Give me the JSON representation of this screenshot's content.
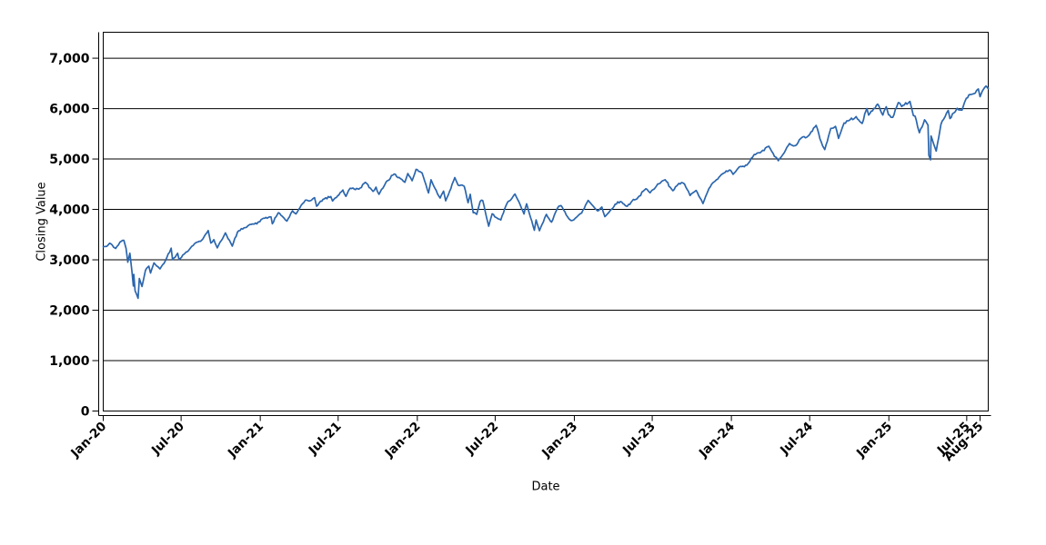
{
  "chart_data": {
    "type": "line",
    "title": "",
    "xlabel": "Date",
    "ylabel": "Closing Value",
    "legend": "none",
    "grid": "horizontal",
    "background_color": "#ffffff",
    "axis_color": "#000000",
    "grid_color": "#000000",
    "line_color": "#2b66ad",
    "x_ticks": [
      {
        "date": "2020-01-02",
        "label": "Jan-20"
      },
      {
        "date": "2020-07-01",
        "label": "Jul-20"
      },
      {
        "date": "2021-01-01",
        "label": "Jan-21"
      },
      {
        "date": "2021-07-01",
        "label": "Jul-21"
      },
      {
        "date": "2022-01-01",
        "label": "Jan-22"
      },
      {
        "date": "2022-07-01",
        "label": "Jul-22"
      },
      {
        "date": "2023-01-01",
        "label": "Jan-23"
      },
      {
        "date": "2023-07-01",
        "label": "Jul-23"
      },
      {
        "date": "2024-01-01",
        "label": "Jan-24"
      },
      {
        "date": "2024-07-01",
        "label": "Jul-24"
      },
      {
        "date": "2025-01-01",
        "label": "Jan-25"
      },
      {
        "date": "2025-07-01",
        "label": "Jul-25"
      },
      {
        "date": "2025-08-01",
        "label": "Aug-25"
      }
    ],
    "y_ticks": [
      {
        "value": 0,
        "label": "0"
      },
      {
        "value": 1000,
        "label": "1,000"
      },
      {
        "value": 2000,
        "label": "2,000"
      },
      {
        "value": 3000,
        "label": "3,000"
      },
      {
        "value": 4000,
        "label": "4,000"
      },
      {
        "value": 5000,
        "label": "5,000"
      },
      {
        "value": 6000,
        "label": "6,000"
      },
      {
        "value": 7000,
        "label": "7,000"
      }
    ],
    "xlim": [
      "2020-01-02",
      "2025-08-20"
    ],
    "ylim": [
      0,
      7515
    ],
    "series": [
      {
        "name": "Closing Value",
        "points": [
          [
            "2020-01-02",
            3258
          ],
          [
            "2020-01-10",
            3265
          ],
          [
            "2020-01-17",
            3330
          ],
          [
            "2020-01-31",
            3226
          ],
          [
            "2020-02-10",
            3352
          ],
          [
            "2020-02-19",
            3386
          ],
          [
            "2020-02-24",
            3226
          ],
          [
            "2020-02-28",
            2954
          ],
          [
            "2020-03-04",
            3130
          ],
          [
            "2020-03-09",
            2747
          ],
          [
            "2020-03-12",
            2481
          ],
          [
            "2020-03-13",
            2711
          ],
          [
            "2020-03-16",
            2386
          ],
          [
            "2020-03-20",
            2305
          ],
          [
            "2020-03-23",
            2237
          ],
          [
            "2020-03-26",
            2630
          ],
          [
            "2020-04-01",
            2470
          ],
          [
            "2020-04-09",
            2790
          ],
          [
            "2020-04-17",
            2875
          ],
          [
            "2020-04-21",
            2737
          ],
          [
            "2020-04-29",
            2940
          ],
          [
            "2020-05-13",
            2820
          ],
          [
            "2020-05-26",
            2992
          ],
          [
            "2020-06-08",
            3232
          ],
          [
            "2020-06-11",
            3002
          ],
          [
            "2020-06-23",
            3131
          ],
          [
            "2020-06-26",
            3009
          ],
          [
            "2020-07-13",
            3155
          ],
          [
            "2020-07-23",
            3236
          ],
          [
            "2020-08-06",
            3349
          ],
          [
            "2020-08-18",
            3390
          ],
          [
            "2020-09-02",
            3581
          ],
          [
            "2020-09-08",
            3332
          ],
          [
            "2020-09-15",
            3401
          ],
          [
            "2020-09-23",
            3237
          ],
          [
            "2020-10-12",
            3534
          ],
          [
            "2020-10-28",
            3271
          ],
          [
            "2020-11-09",
            3550
          ],
          [
            "2020-11-24",
            3635
          ],
          [
            "2020-12-08",
            3702
          ],
          [
            "2020-12-18",
            3709
          ],
          [
            "2020-12-31",
            3756
          ],
          [
            "2021-01-08",
            3825
          ],
          [
            "2021-01-26",
            3850
          ],
          [
            "2021-01-29",
            3714
          ],
          [
            "2021-02-12",
            3935
          ],
          [
            "2021-02-25",
            3829
          ],
          [
            "2021-03-04",
            3768
          ],
          [
            "2021-03-17",
            3974
          ],
          [
            "2021-03-25",
            3910
          ],
          [
            "2021-04-16",
            4185
          ],
          [
            "2021-04-30",
            4181
          ],
          [
            "2021-05-07",
            4233
          ],
          [
            "2021-05-12",
            4063
          ],
          [
            "2021-05-27",
            4201
          ],
          [
            "2021-06-14",
            4255
          ],
          [
            "2021-06-18",
            4166
          ],
          [
            "2021-07-12",
            4385
          ],
          [
            "2021-07-19",
            4258
          ],
          [
            "2021-07-29",
            4420
          ],
          [
            "2021-08-18",
            4400
          ],
          [
            "2021-09-02",
            4537
          ],
          [
            "2021-09-20",
            4358
          ],
          [
            "2021-09-27",
            4443
          ],
          [
            "2021-10-04",
            4300
          ],
          [
            "2021-10-21",
            4550
          ],
          [
            "2021-11-08",
            4702
          ],
          [
            "2021-11-26",
            4595
          ],
          [
            "2021-12-03",
            4538
          ],
          [
            "2021-12-10",
            4712
          ],
          [
            "2021-12-20",
            4568
          ],
          [
            "2021-12-29",
            4793
          ],
          [
            "2022-01-12",
            4726
          ],
          [
            "2022-01-27",
            4327
          ],
          [
            "2022-02-02",
            4589
          ],
          [
            "2022-02-11",
            4419
          ],
          [
            "2022-02-23",
            4226
          ],
          [
            "2022-03-03",
            4363
          ],
          [
            "2022-03-08",
            4171
          ],
          [
            "2022-03-29",
            4631
          ],
          [
            "2022-04-06",
            4481
          ],
          [
            "2022-04-20",
            4459
          ],
          [
            "2022-04-29",
            4132
          ],
          [
            "2022-05-04",
            4300
          ],
          [
            "2022-05-11",
            3935
          ],
          [
            "2022-05-19",
            3901
          ],
          [
            "2022-05-27",
            4158
          ],
          [
            "2022-06-02",
            4177
          ],
          [
            "2022-06-16",
            3667
          ],
          [
            "2022-06-24",
            3912
          ],
          [
            "2022-07-05",
            3831
          ],
          [
            "2022-07-14",
            3790
          ],
          [
            "2022-07-29",
            4130
          ],
          [
            "2022-08-16",
            4305
          ],
          [
            "2022-09-06",
            3908
          ],
          [
            "2022-09-12",
            4110
          ],
          [
            "2022-09-30",
            3586
          ],
          [
            "2022-10-04",
            3791
          ],
          [
            "2022-10-12",
            3577
          ],
          [
            "2022-10-28",
            3901
          ],
          [
            "2022-11-09",
            3748
          ],
          [
            "2022-11-23",
            4027
          ],
          [
            "2022-12-01",
            4076
          ],
          [
            "2022-12-19",
            3818
          ],
          [
            "2022-12-28",
            3783
          ],
          [
            "2023-01-03",
            3824
          ],
          [
            "2023-01-18",
            3929
          ],
          [
            "2023-02-02",
            4180
          ],
          [
            "2023-02-24",
            3970
          ],
          [
            "2023-03-06",
            4048
          ],
          [
            "2023-03-13",
            3856
          ],
          [
            "2023-03-22",
            3937
          ],
          [
            "2023-04-06",
            4105
          ],
          [
            "2023-04-18",
            4155
          ],
          [
            "2023-05-04",
            4061
          ],
          [
            "2023-05-18",
            4198
          ],
          [
            "2023-05-26",
            4205
          ],
          [
            "2023-06-16",
            4410
          ],
          [
            "2023-06-26",
            4329
          ],
          [
            "2023-07-14",
            4505
          ],
          [
            "2023-07-31",
            4589
          ],
          [
            "2023-08-18",
            4370
          ],
          [
            "2023-09-01",
            4516
          ],
          [
            "2023-09-14",
            4505
          ],
          [
            "2023-09-27",
            4275
          ],
          [
            "2023-10-11",
            4377
          ],
          [
            "2023-10-27",
            4117
          ],
          [
            "2023-11-10",
            4415
          ],
          [
            "2023-11-24",
            4559
          ],
          [
            "2023-12-14",
            4720
          ],
          [
            "2023-12-28",
            4783
          ],
          [
            "2024-01-05",
            4697
          ],
          [
            "2024-01-19",
            4840
          ],
          [
            "2024-01-31",
            4846
          ],
          [
            "2024-02-13",
            4953
          ],
          [
            "2024-02-23",
            5089
          ],
          [
            "2024-03-08",
            5124
          ],
          [
            "2024-03-28",
            5254
          ],
          [
            "2024-04-04",
            5147
          ],
          [
            "2024-04-19",
            4967
          ],
          [
            "2024-05-03",
            5128
          ],
          [
            "2024-05-15",
            5308
          ],
          [
            "2024-05-29",
            5266
          ],
          [
            "2024-06-12",
            5421
          ],
          [
            "2024-06-28",
            5460
          ],
          [
            "2024-07-16",
            5667
          ],
          [
            "2024-07-25",
            5399
          ],
          [
            "2024-08-05",
            5186
          ],
          [
            "2024-08-19",
            5608
          ],
          [
            "2024-08-30",
            5648
          ],
          [
            "2024-09-06",
            5408
          ],
          [
            "2024-09-19",
            5714
          ],
          [
            "2024-09-30",
            5762
          ],
          [
            "2024-10-17",
            5841
          ],
          [
            "2024-10-31",
            5705
          ],
          [
            "2024-11-11",
            6001
          ],
          [
            "2024-11-15",
            5871
          ],
          [
            "2024-12-06",
            6090
          ],
          [
            "2024-12-18",
            5872
          ],
          [
            "2024-12-26",
            6038
          ],
          [
            "2024-12-31",
            5882
          ],
          [
            "2025-01-10",
            5827
          ],
          [
            "2025-01-23",
            6119
          ],
          [
            "2025-01-31",
            6041
          ],
          [
            "2025-02-19",
            6144
          ],
          [
            "2025-02-27",
            5862
          ],
          [
            "2025-03-03",
            5850
          ],
          [
            "2025-03-13",
            5521
          ],
          [
            "2025-03-25",
            5777
          ],
          [
            "2025-04-02",
            5671
          ],
          [
            "2025-04-04",
            5074
          ],
          [
            "2025-04-08",
            4983
          ],
          [
            "2025-04-09",
            5457
          ],
          [
            "2025-04-16",
            5276
          ],
          [
            "2025-04-21",
            5158
          ],
          [
            "2025-05-02",
            5687
          ],
          [
            "2025-05-12",
            5844
          ],
          [
            "2025-05-19",
            5963
          ],
          [
            "2025-05-23",
            5803
          ],
          [
            "2025-06-09",
            6006
          ],
          [
            "2025-06-20",
            5968
          ],
          [
            "2025-06-30",
            6205
          ],
          [
            "2025-07-10",
            6280
          ],
          [
            "2025-07-18",
            6297
          ],
          [
            "2025-07-28",
            6390
          ],
          [
            "2025-08-01",
            6238
          ],
          [
            "2025-08-06",
            6345
          ],
          [
            "2025-08-12",
            6423
          ],
          [
            "2025-08-15",
            6449
          ],
          [
            "2025-08-20",
            6395
          ]
        ]
      }
    ]
  }
}
